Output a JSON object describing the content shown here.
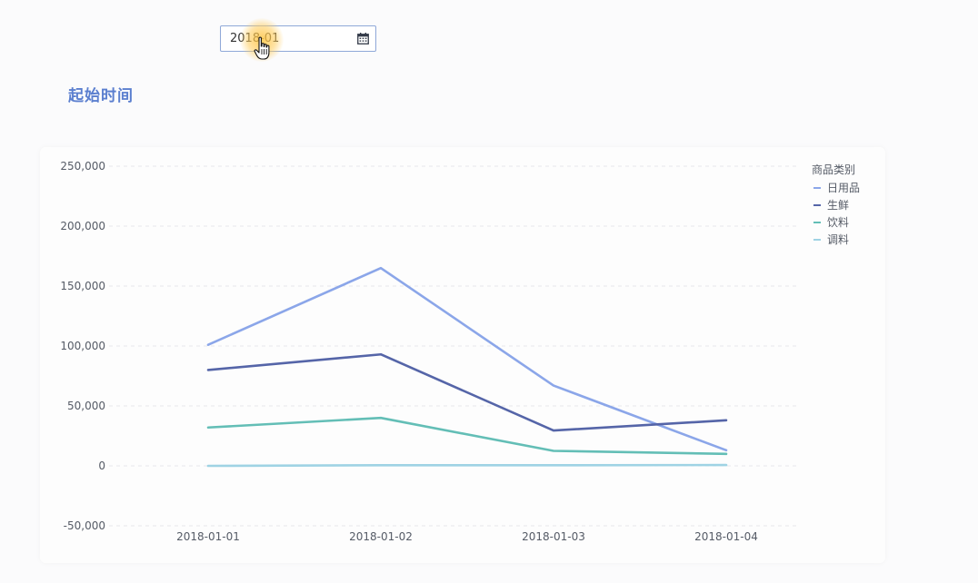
{
  "date_picker": {
    "value": "2018-01"
  },
  "section_title": "起始时间",
  "chart_data": {
    "type": "line",
    "categories": [
      "2018-01-01",
      "2018-01-02",
      "2018-01-03",
      "2018-01-04"
    ],
    "y_ticks": [
      "250,000",
      "200,000",
      "150,000",
      "100,000",
      "50,000",
      "0",
      "-50,000"
    ],
    "y_tick_values": [
      250000,
      200000,
      150000,
      100000,
      50000,
      0,
      -50000
    ],
    "ylim": [
      -50000,
      250000
    ],
    "grid": true,
    "legend": {
      "title": "商品类别",
      "placement": "top-right"
    },
    "series": [
      {
        "name": "日用品",
        "color": "#8ba6e9",
        "values": [
          101000,
          165000,
          67000,
          13000
        ]
      },
      {
        "name": "生鲜",
        "color": "#5565a8",
        "values": [
          80000,
          93000,
          29500,
          38000
        ]
      },
      {
        "name": "饮料",
        "color": "#63beb6",
        "values": [
          32000,
          40000,
          12500,
          10000
        ]
      },
      {
        "name": "调料",
        "color": "#9fd3e4",
        "values": [
          0,
          500,
          500,
          700
        ]
      }
    ]
  }
}
